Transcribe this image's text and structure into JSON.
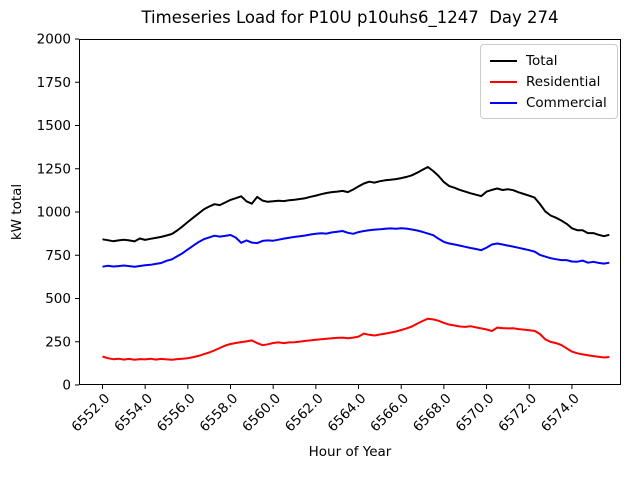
{
  "title": "Timeseries Load for P10U p10uhs6_1247  Day 274",
  "chart_data": {
    "type": "line",
    "title": "Timeseries Load for P10U p10uhs6_1247  Day 274",
    "xlabel": "Hour of Year",
    "ylabel": "kW total",
    "grid": false,
    "legend_position": "upper right",
    "xlim": [
      6550.9,
      6576.3
    ],
    "ylim": [
      0,
      2000
    ],
    "x_tick_labels": [
      "6552.0",
      "6554.0",
      "6556.0",
      "6558.0",
      "6560.0",
      "6562.0",
      "6564.0",
      "6566.0",
      "6568.0",
      "6570.0",
      "6572.0",
      "6574.0"
    ],
    "x_tick_values": [
      6552,
      6554,
      6556,
      6558,
      6560,
      6562,
      6564,
      6566,
      6568,
      6570,
      6572,
      6574
    ],
    "y_ticks": [
      0,
      250,
      500,
      750,
      1000,
      1250,
      1500,
      1750,
      2000
    ],
    "x_start": 6552.0,
    "x_step": 0.25,
    "n_points": 96,
    "series": [
      {
        "name": "Total",
        "color": "#000000",
        "values": [
          842,
          837,
          831,
          836,
          840,
          836,
          830,
          847,
          839,
          845,
          850,
          856,
          864,
          873,
          893,
          917,
          942,
          967,
          991,
          1015,
          1032,
          1045,
          1040,
          1055,
          1070,
          1080,
          1091,
          1062,
          1048,
          1087,
          1066,
          1059,
          1062,
          1065,
          1063,
          1068,
          1071,
          1075,
          1080,
          1088,
          1095,
          1103,
          1110,
          1115,
          1118,
          1122,
          1115,
          1130,
          1148,
          1165,
          1175,
          1170,
          1178,
          1183,
          1186,
          1190,
          1196,
          1203,
          1212,
          1227,
          1244,
          1260,
          1237,
          1208,
          1173,
          1150,
          1140,
          1128,
          1118,
          1108,
          1100,
          1092,
          1118,
          1128,
          1136,
          1127,
          1132,
          1126,
          1114,
          1104,
          1094,
          1083,
          1046,
          1004,
          980,
          967,
          951,
          932,
          906,
          895,
          895,
          878,
          878,
          868,
          860,
          868
        ]
      },
      {
        "name": "Residential",
        "color": "#ff0000",
        "values": [
          165,
          155,
          149,
          152,
          147,
          151,
          146,
          150,
          148,
          152,
          147,
          151,
          148,
          146,
          150,
          152,
          155,
          161,
          168,
          178,
          188,
          200,
          214,
          228,
          237,
          243,
          248,
          252,
          258,
          242,
          230,
          235,
          243,
          246,
          242,
          246,
          247,
          251,
          255,
          258,
          261,
          264,
          267,
          270,
          272,
          274,
          270,
          274,
          280,
          297,
          290,
          286,
          292,
          297,
          303,
          309,
          318,
          327,
          338,
          355,
          370,
          383,
          379,
          371,
          359,
          349,
          344,
          338,
          336,
          340,
          333,
          327,
          321,
          312,
          332,
          329,
          327,
          328,
          323,
          320,
          317,
          313,
          295,
          264,
          249,
          242,
          231,
          212,
          193,
          183,
          177,
          172,
          167,
          163,
          159,
          162
        ]
      },
      {
        "name": "Commercial",
        "color": "#0000ff",
        "values": [
          684,
          689,
          685,
          687,
          691,
          687,
          684,
          688,
          692,
          695,
          700,
          705,
          718,
          726,
          744,
          762,
          784,
          805,
          826,
          843,
          853,
          863,
          858,
          862,
          867,
          852,
          822,
          836,
          823,
          820,
          833,
          836,
          834,
          840,
          846,
          851,
          856,
          860,
          864,
          870,
          874,
          877,
          875,
          882,
          886,
          890,
          880,
          874,
          884,
          890,
          895,
          898,
          900,
          903,
          905,
          903,
          906,
          904,
          899,
          893,
          885,
          875,
          866,
          845,
          827,
          818,
          812,
          806,
          799,
          792,
          786,
          779,
          794,
          812,
          818,
          812,
          806,
          800,
          793,
          786,
          779,
          771,
          752,
          742,
          733,
          727,
          722,
          722,
          714,
          713,
          719,
          707,
          712,
          706,
          702,
          707
        ]
      }
    ]
  }
}
